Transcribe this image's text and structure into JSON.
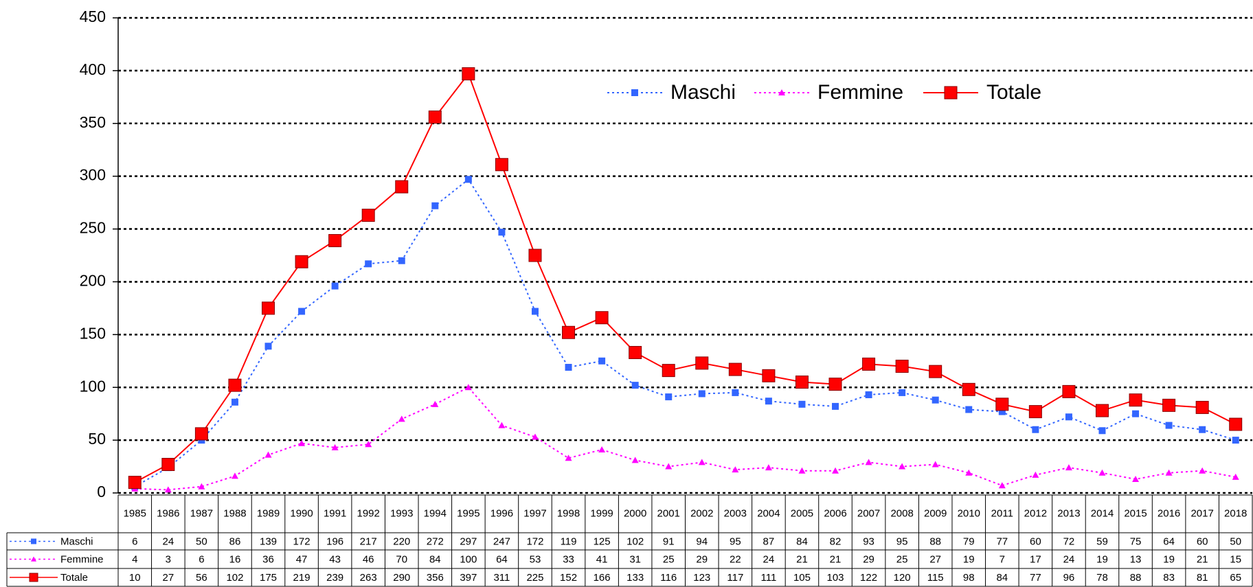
{
  "chart_data": {
    "type": "line",
    "categories": [
      "1985",
      "1986",
      "1987",
      "1988",
      "1989",
      "1990",
      "1991",
      "1992",
      "1993",
      "1994",
      "1995",
      "1996",
      "1997",
      "1998",
      "1999",
      "2000",
      "2001",
      "2002",
      "2003",
      "2004",
      "2005",
      "2006",
      "2007",
      "2008",
      "2009",
      "2010",
      "2011",
      "2012",
      "2013",
      "2014",
      "2015",
      "2016",
      "2017",
      "2018"
    ],
    "series": [
      {
        "name": "Maschi",
        "color": "#3366ff",
        "marker": "square",
        "dash": "dotted",
        "values": [
          6,
          24,
          50,
          86,
          139,
          172,
          196,
          217,
          220,
          272,
          297,
          247,
          172,
          119,
          125,
          102,
          91,
          94,
          95,
          87,
          84,
          82,
          93,
          95,
          88,
          79,
          77,
          60,
          72,
          59,
          75,
          64,
          60,
          50
        ]
      },
      {
        "name": "Femmine",
        "color": "#ff00ff",
        "marker": "triangle",
        "dash": "dotted",
        "values": [
          4,
          3,
          6,
          16,
          36,
          47,
          43,
          46,
          70,
          84,
          100,
          64,
          53,
          33,
          41,
          31,
          25,
          29,
          22,
          24,
          21,
          21,
          29,
          25,
          27,
          19,
          7,
          17,
          24,
          19,
          13,
          19,
          21,
          15
        ]
      },
      {
        "name": "Totale",
        "color": "#ff0000",
        "marker": "big-square",
        "dash": "solid",
        "values": [
          10,
          27,
          56,
          102,
          175,
          219,
          239,
          263,
          290,
          356,
          397,
          311,
          225,
          152,
          166,
          133,
          116,
          123,
          117,
          111,
          105,
          103,
          122,
          120,
          115,
          98,
          84,
          77,
          96,
          78,
          88,
          83,
          81,
          65
        ]
      }
    ],
    "ylim": [
      0,
      450
    ],
    "yticks": [
      0,
      50,
      100,
      150,
      200,
      250,
      300,
      350,
      400,
      450
    ],
    "grid": true,
    "legend": "top-right"
  }
}
